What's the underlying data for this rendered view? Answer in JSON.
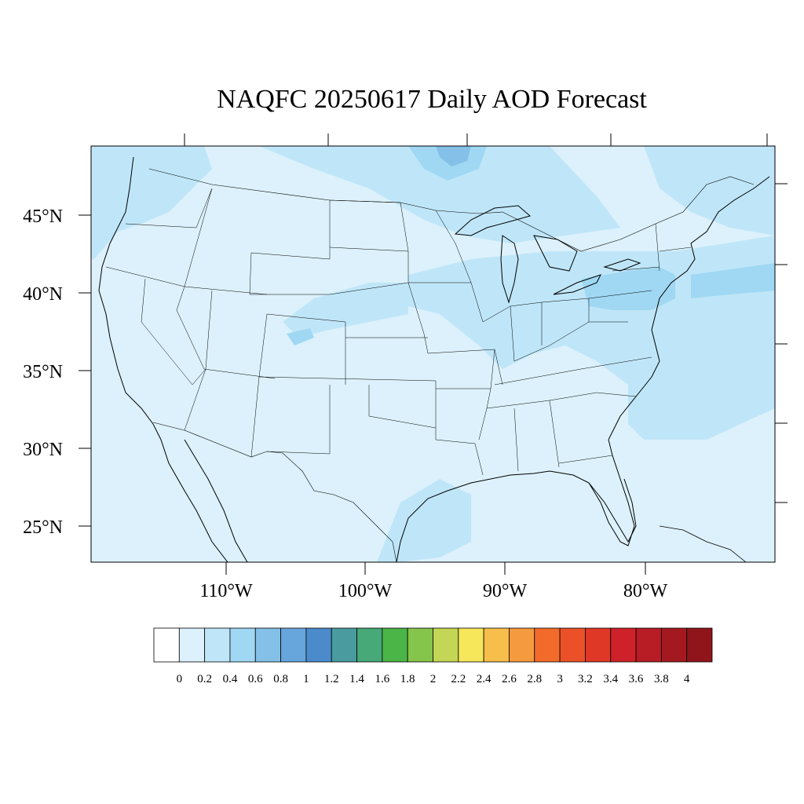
{
  "title": "NAQFC 20250617 Daily AOD Forecast",
  "map": {
    "lat_ticks": [
      {
        "label": "45°N",
        "value": 45
      },
      {
        "label": "40°N",
        "value": 40
      },
      {
        "label": "35°N",
        "value": 35
      },
      {
        "label": "30°N",
        "value": 30
      },
      {
        "label": "25°N",
        "value": 25
      }
    ],
    "lon_ticks": [
      {
        "label": "110°W",
        "value": -110
      },
      {
        "label": "100°W",
        "value": -100
      },
      {
        "label": "90°W",
        "value": -90
      },
      {
        "label": "80°W",
        "value": -80
      }
    ],
    "background_color": "#dcf1fb",
    "elevated_color": "#bfe6f8"
  },
  "colorbar": {
    "labels": [
      "0",
      "0.2",
      "0.4",
      "0.6",
      "0.8",
      "1",
      "1.2",
      "1.4",
      "1.6",
      "1.8",
      "2",
      "2.2",
      "2.4",
      "2.6",
      "2.8",
      "3",
      "3.2",
      "3.4",
      "3.6",
      "3.8",
      "4"
    ],
    "colors": [
      "#ffffff",
      "#dcf1fb",
      "#bfe6f8",
      "#a0d8f3",
      "#84c0e7",
      "#67a6dd",
      "#4b8bcc",
      "#4a9ba0",
      "#47a878",
      "#4bb548",
      "#86c54c",
      "#c3d655",
      "#f6e65a",
      "#f8be4c",
      "#f59a3e",
      "#f26b2b",
      "#ea5128",
      "#e03827",
      "#cf2129",
      "#b81c25",
      "#a3191f",
      "#8f151b"
    ]
  }
}
